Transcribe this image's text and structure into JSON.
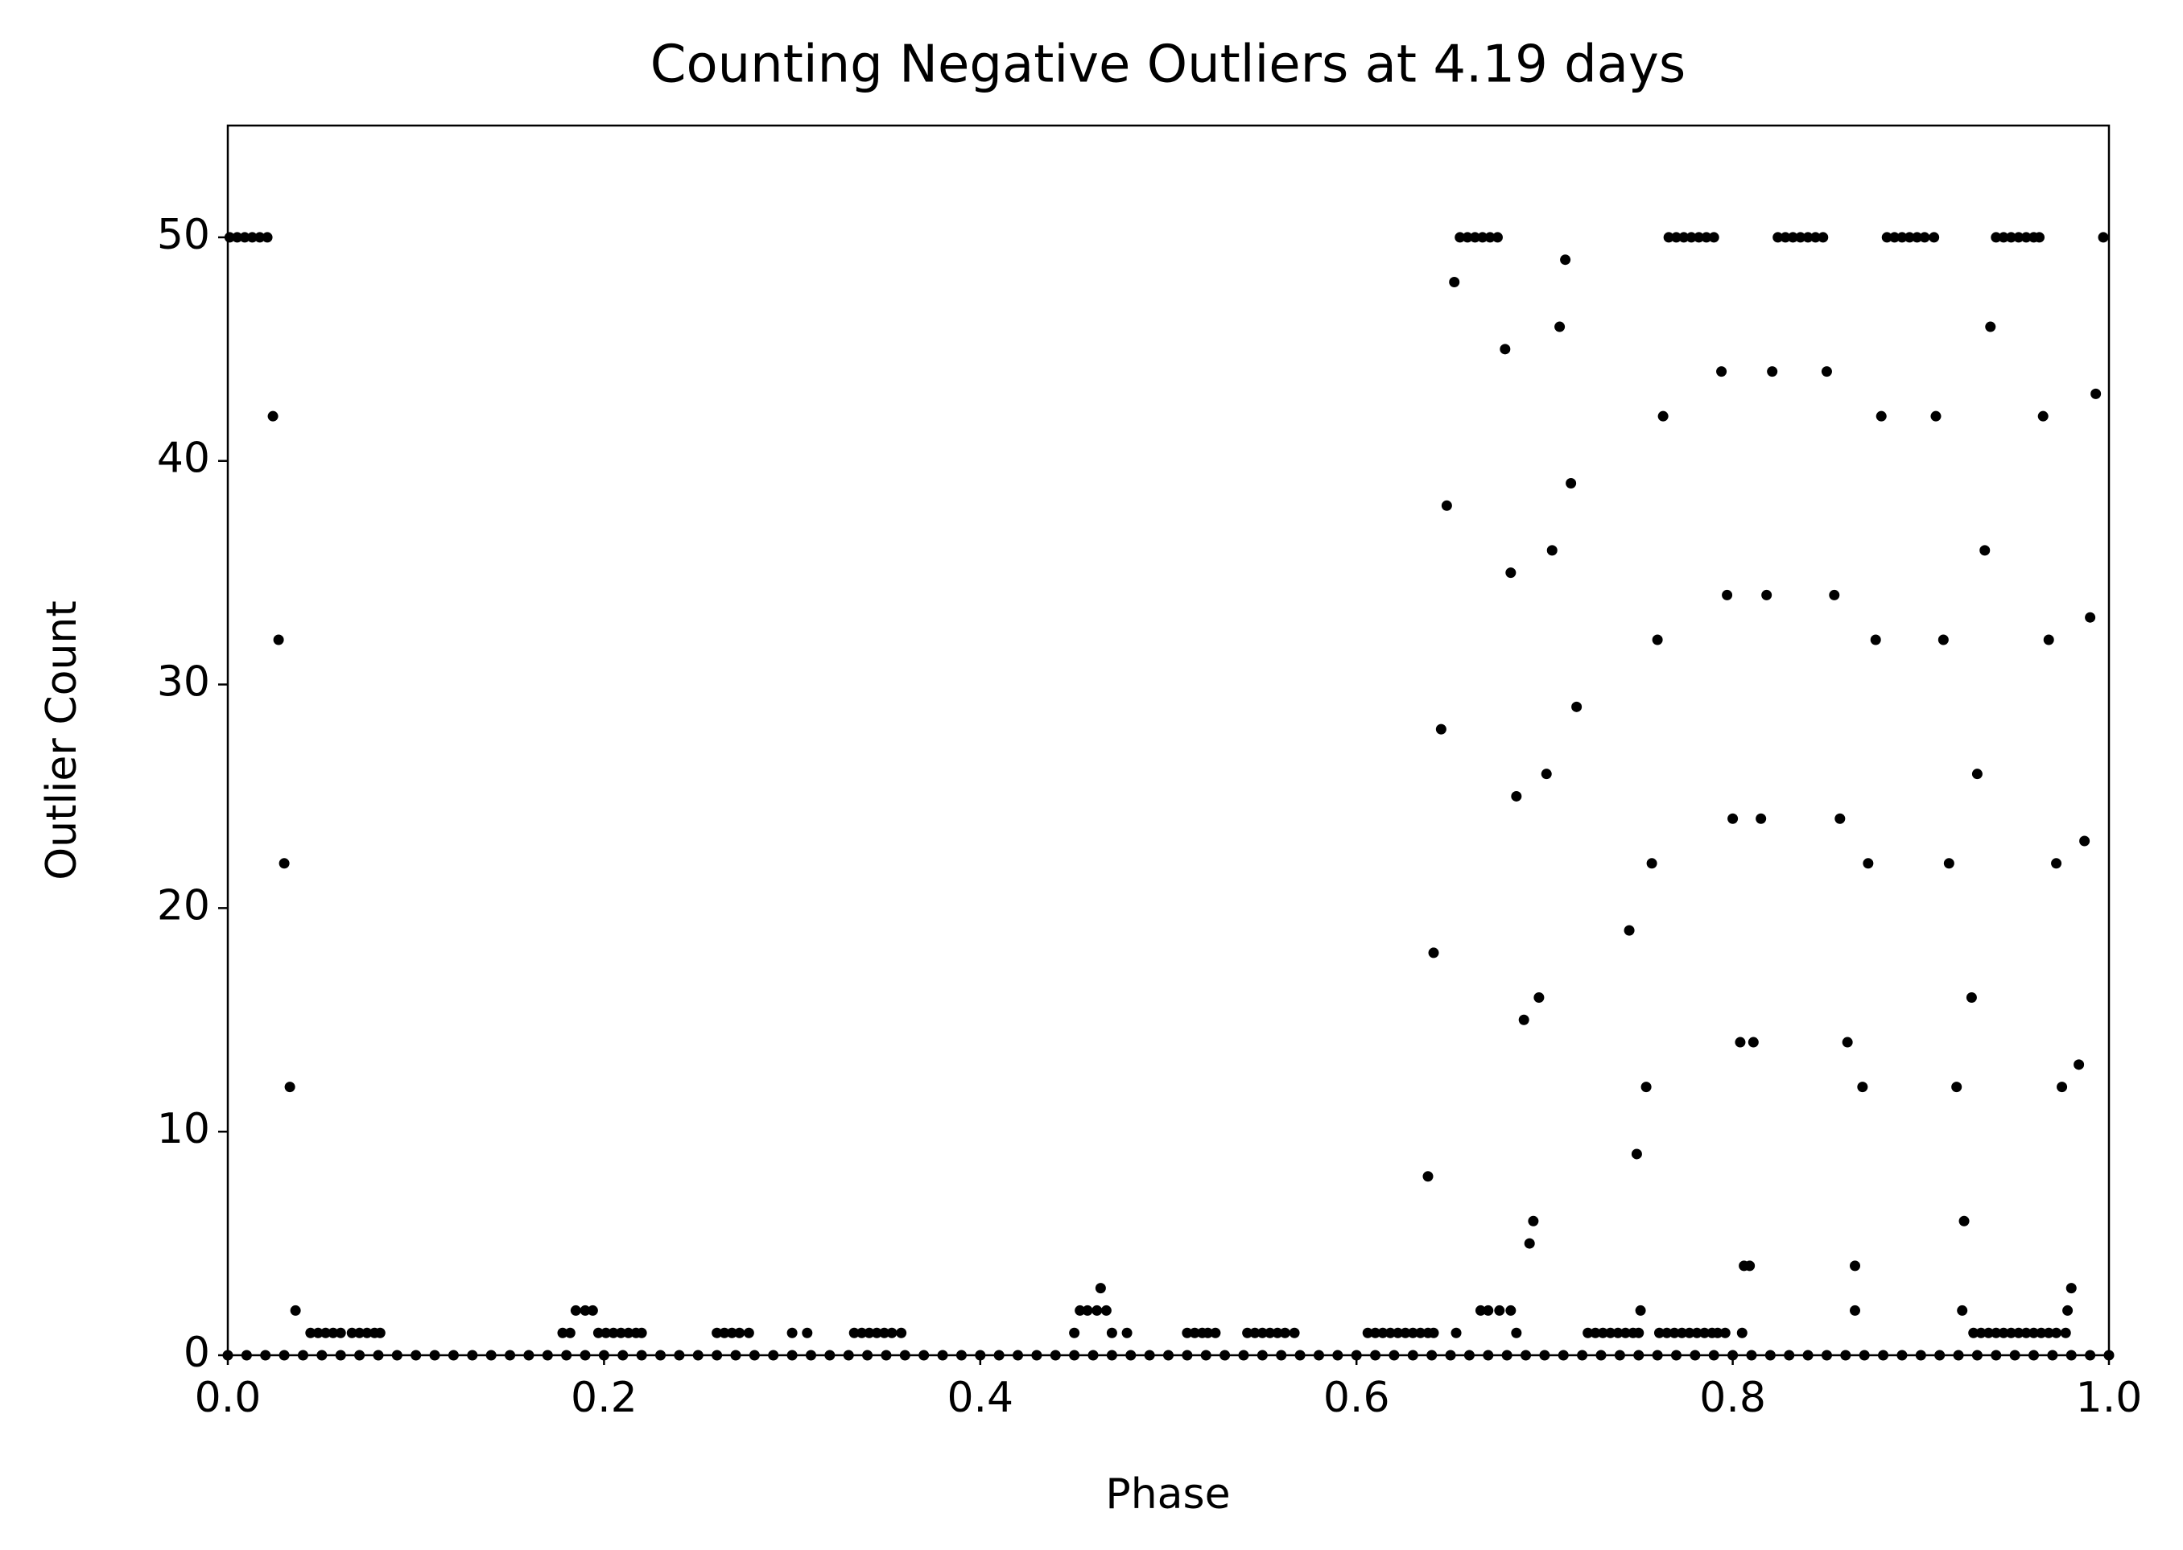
{
  "chart_data": {
    "type": "scatter",
    "title": "Counting Negative Outliers at 4.19 days",
    "x_label": "Phase",
    "y_label": "Outlier Count",
    "color": "#000000",
    "xlim": [
      0,
      1
    ],
    "ylim": [
      0,
      55
    ],
    "xticks": [
      {
        "value": 0,
        "label": "0.0"
      },
      0.2,
      0.4,
      0.6,
      0.8,
      {
        "value": 1,
        "label": "1.0"
      }
    ],
    "yticks": [
      0,
      10,
      20,
      30,
      40,
      50
    ],
    "x": [
      0.001,
      0.005,
      0.009,
      0.013,
      0.017,
      0.021,
      0.024,
      0.027,
      0.03,
      0.033,
      0.036,
      0.044,
      0.048,
      0.052,
      0.056,
      0.06,
      0.066,
      0.07,
      0.074,
      0.078,
      0.081,
      0.178,
      0.182,
      0.185,
      0.19,
      0.194,
      0.197,
      0.201,
      0.205,
      0.209,
      0.213,
      0.217,
      0.22,
      0.26,
      0.264,
      0.268,
      0.272,
      0.277,
      0.3,
      0.308,
      0.333,
      0.337,
      0.341,
      0.345,
      0.349,
      0.353,
      0.358,
      0.45,
      0.453,
      0.457,
      0.462,
      0.464,
      0.467,
      0.47,
      0.478,
      0.51,
      0.514,
      0.518,
      0.521,
      0.525,
      0.542,
      0.546,
      0.55,
      0.554,
      0.558,
      0.562,
      0.567,
      0.606,
      0.61,
      0.614,
      0.618,
      0.622,
      0.626,
      0.63,
      0.634,
      0.638,
      0.641,
      0.638,
      0.641,
      0.645,
      0.648,
      0.652,
      0.653,
      0.655,
      0.659,
      0.663,
      0.667,
      0.671,
      0.675,
      0.666,
      0.67,
      0.679,
      0.676,
      0.682,
      0.682,
      0.685,
      0.685,
      0.689,
      0.692,
      0.694,
      0.697,
      0.701,
      0.704,
      0.708,
      0.711,
      0.714,
      0.717,
      0.723,
      0.727,
      0.731,
      0.735,
      0.739,
      0.743,
      0.747,
      0.75,
      0.745,
      0.749,
      0.751,
      0.754,
      0.757,
      0.761,
      0.765,
      0.769,
      0.773,
      0.777,
      0.781,
      0.785,
      0.789,
      0.792,
      0.796,
      0.76,
      0.763,
      0.766,
      0.77,
      0.774,
      0.778,
      0.782,
      0.786,
      0.79,
      0.794,
      0.797,
      0.8,
      0.804,
      0.805,
      0.806,
      0.809,
      0.811,
      0.815,
      0.818,
      0.821,
      0.824,
      0.828,
      0.832,
      0.836,
      0.84,
      0.844,
      0.848,
      0.85,
      0.854,
      0.857,
      0.861,
      0.865,
      0.865,
      0.869,
      0.872,
      0.876,
      0.879,
      0.882,
      0.886,
      0.89,
      0.894,
      0.898,
      0.902,
      0.907,
      0.908,
      0.912,
      0.915,
      0.919,
      0.922,
      0.923,
      0.927,
      0.93,
      0.934,
      0.937,
      0.928,
      0.932,
      0.936,
      0.94,
      0.944,
      0.948,
      0.952,
      0.956,
      0.96,
      0.964,
      0.968,
      0.972,
      0.977,
      0.94,
      0.944,
      0.948,
      0.952,
      0.956,
      0.96,
      0.963,
      0.965,
      0.968,
      0.972,
      0.975,
      0.978,
      0.98,
      0.984,
      0.987,
      0.99,
      0.993,
      0.997,
      0,
      0.01,
      0.02,
      0.03,
      0.04,
      0.05,
      0.06,
      0.07,
      0.08,
      0.09,
      0.1,
      0.11,
      0.12,
      0.13,
      0.14,
      0.15,
      0.16,
      0.17,
      0.18,
      0.19,
      0.2,
      0.21,
      0.22,
      0.23,
      0.24,
      0.25,
      0.26,
      0.27,
      0.28,
      0.29,
      0.3,
      0.31,
      0.32,
      0.33,
      0.34,
      0.35,
      0.36,
      0.37,
      0.38,
      0.39,
      0.4,
      0.41,
      0.42,
      0.43,
      0.44,
      0.45,
      0.46,
      0.47,
      0.48,
      0.49,
      0.5,
      0.51,
      0.52,
      0.53,
      0.54,
      0.55,
      0.56,
      0.57,
      0.58,
      0.59,
      0.6,
      0.61,
      0.62,
      0.63,
      0.64,
      0.65,
      0.66,
      0.67,
      0.68,
      0.69,
      0.7,
      0.71,
      0.72,
      0.73,
      0.74,
      0.75,
      0.76,
      0.77,
      0.78,
      0.79,
      0.8,
      0.81,
      0.82,
      0.83,
      0.84,
      0.85,
      0.86,
      0.87,
      0.88,
      0.89,
      0.9,
      0.91,
      0.92,
      0.93,
      0.94,
      0.95,
      0.96,
      0.97,
      0.98,
      0.99,
      1
    ],
    "values": [
      50,
      50,
      50,
      50,
      50,
      50,
      42,
      32,
      22,
      12,
      2,
      1,
      1,
      1,
      1,
      1,
      1,
      1,
      1,
      1,
      1,
      1,
      1,
      2,
      2,
      2,
      1,
      1,
      1,
      1,
      1,
      1,
      1,
      1,
      1,
      1,
      1,
      1,
      1,
      1,
      1,
      1,
      1,
      1,
      1,
      1,
      1,
      1,
      2,
      2,
      2,
      3,
      2,
      1,
      1,
      1,
      1,
      1,
      1,
      1,
      1,
      1,
      1,
      1,
      1,
      1,
      1,
      1,
      1,
      1,
      1,
      1,
      1,
      1,
      1,
      1,
      1,
      8,
      18,
      28,
      38,
      48,
      1,
      50,
      50,
      50,
      50,
      50,
      50,
      2,
      2,
      45,
      2,
      2,
      35,
      1,
      25,
      15,
      5,
      6,
      16,
      26,
      36,
      46,
      49,
      39,
      29,
      1,
      1,
      1,
      1,
      1,
      1,
      1,
      1,
      19,
      9,
      2,
      12,
      22,
      1,
      1,
      1,
      1,
      1,
      1,
      1,
      1,
      1,
      1,
      32,
      42,
      50,
      50,
      50,
      50,
      50,
      50,
      50,
      44,
      34,
      24,
      14,
      1,
      4,
      4,
      14,
      24,
      34,
      44,
      50,
      50,
      50,
      50,
      50,
      50,
      50,
      44,
      34,
      24,
      14,
      4,
      2,
      12,
      22,
      32,
      42,
      50,
      50,
      50,
      50,
      50,
      50,
      50,
      42,
      32,
      22,
      12,
      2,
      6,
      16,
      26,
      36,
      46,
      1,
      1,
      1,
      1,
      1,
      1,
      1,
      1,
      1,
      1,
      1,
      1,
      1,
      50,
      50,
      50,
      50,
      50,
      50,
      50,
      42,
      32,
      22,
      12,
      2,
      3,
      13,
      23,
      33,
      43,
      50,
      0,
      0,
      0,
      0,
      0,
      0,
      0,
      0,
      0,
      0,
      0,
      0,
      0,
      0,
      0,
      0,
      0,
      0,
      0,
      0,
      0,
      0,
      0,
      0,
      0,
      0,
      0,
      0,
      0,
      0,
      0,
      0,
      0,
      0,
      0,
      0,
      0,
      0,
      0,
      0,
      0,
      0,
      0,
      0,
      0,
      0,
      0,
      0,
      0,
      0,
      0,
      0,
      0,
      0,
      0,
      0,
      0,
      0,
      0,
      0,
      0,
      0,
      0,
      0,
      0,
      0,
      0,
      0,
      0,
      0,
      0,
      0,
      0,
      0,
      0,
      0,
      0,
      0,
      0,
      0,
      0,
      0,
      0,
      0,
      0,
      0,
      0,
      0,
      0,
      0,
      0,
      0,
      0,
      0,
      0,
      0,
      0,
      0,
      0,
      0,
      0
    ]
  }
}
